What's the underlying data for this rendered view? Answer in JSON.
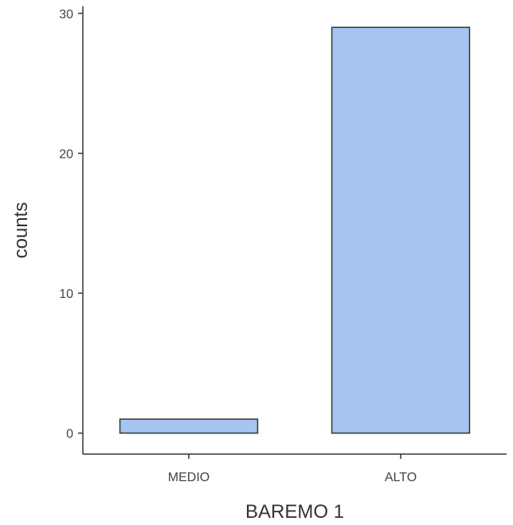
{
  "chart_data": {
    "type": "bar",
    "categories": [
      "MEDIO",
      "ALTO"
    ],
    "values": [
      1,
      29
    ],
    "xlabel": "BAREMO 1",
    "ylabel": "counts",
    "ylim": [
      -1.5,
      30.5
    ],
    "yticks": [
      0,
      10,
      20,
      30
    ],
    "grid": false,
    "colors": {
      "bar_fill": "#a6c4f0",
      "bar_stroke": "#333333",
      "axis": "#333333",
      "text": "#444444"
    }
  }
}
